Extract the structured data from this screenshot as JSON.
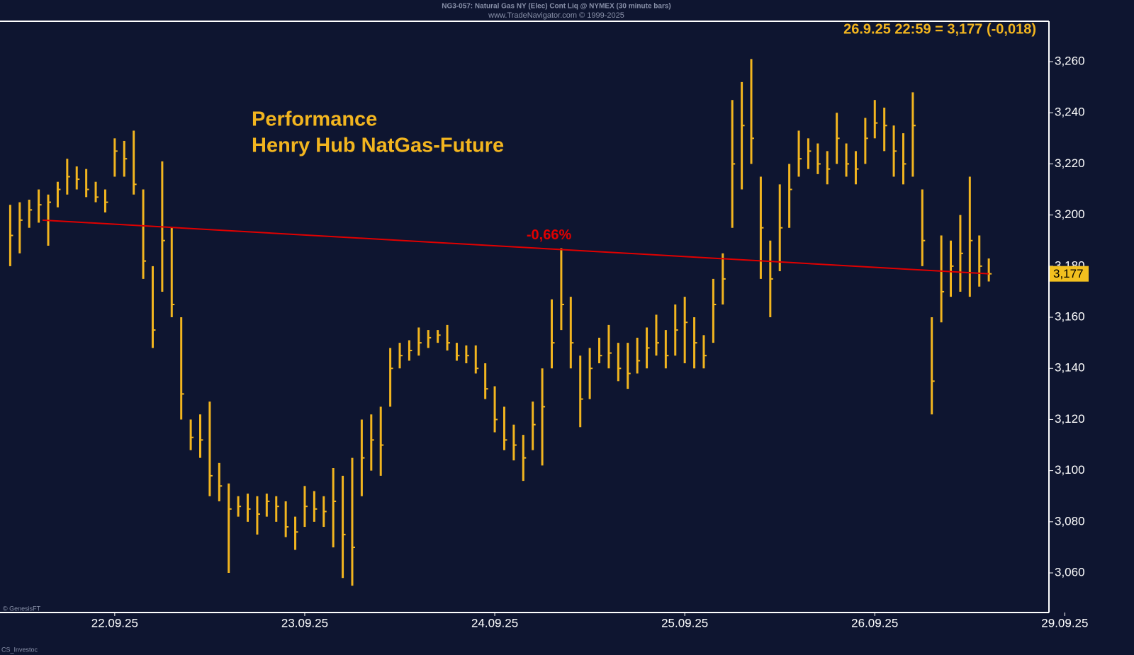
{
  "chart_data": {
    "type": "hlc",
    "source_line": "NG3-057: Natural Gas NY (Elec) Cont Liq @ NYMEX (30 minute bars)",
    "copyright_line": "www.TradeNavigator.com © 1999-2025",
    "title": "Performance",
    "subtitle": "Henry Hub NatGas-Future",
    "header_annotation": "26.9.25 22:59 = 3,177 (-0,018)",
    "watermark_1": "© GenesisFT",
    "watermark_2": "CS_Investoc",
    "color": "#f2b51f",
    "x": [
      -0.55,
      -0.5,
      -0.45,
      -0.4,
      -0.35,
      -0.3,
      -0.25,
      -0.2,
      -0.15,
      -0.1,
      -0.05,
      0,
      0.05,
      0.1,
      0.15,
      0.2,
      0.25,
      0.3,
      0.35,
      0.4,
      0.45,
      0.5,
      0.55,
      0.6,
      0.65,
      0.7,
      0.75,
      0.8,
      0.85,
      0.9,
      0.95,
      1,
      1.05,
      1.1,
      1.15,
      1.2,
      1.25,
      1.3,
      1.35,
      1.4,
      1.45,
      1.5,
      1.55,
      1.6,
      1.65,
      1.7,
      1.75,
      1.8,
      1.85,
      1.9,
      1.95,
      2,
      2.05,
      2.1,
      2.15,
      2.2,
      2.25,
      2.3,
      2.35,
      2.4,
      2.45,
      2.5,
      2.55,
      2.6,
      2.65,
      2.7,
      2.75,
      2.8,
      2.85,
      2.9,
      2.95,
      3,
      3.05,
      3.1,
      3.15,
      3.2,
      3.25,
      3.3,
      3.35,
      3.4,
      3.45,
      3.5,
      3.55,
      3.6,
      3.65,
      3.7,
      3.75,
      3.8,
      3.85,
      3.9,
      3.95,
      4,
      4.05,
      4.1,
      4.15,
      4.2,
      4.25,
      4.3,
      4.35,
      4.4,
      4.45,
      4.5,
      4.55,
      4.6
    ],
    "high": [
      3.204,
      3.205,
      3.206,
      3.21,
      3.208,
      3.213,
      3.222,
      3.219,
      3.218,
      3.213,
      3.21,
      3.23,
      3.229,
      3.233,
      3.21,
      3.18,
      3.221,
      3.195,
      3.16,
      3.12,
      3.122,
      3.127,
      3.103,
      3.095,
      3.09,
      3.091,
      3.09,
      3.091,
      3.09,
      3.088,
      3.082,
      3.094,
      3.092,
      3.09,
      3.101,
      3.098,
      3.105,
      3.12,
      3.122,
      3.125,
      3.148,
      3.15,
      3.151,
      3.156,
      3.155,
      3.155,
      3.157,
      3.15,
      3.149,
      3.149,
      3.142,
      3.133,
      3.125,
      3.118,
      3.114,
      3.127,
      3.14,
      3.167,
      3.187,
      3.168,
      3.145,
      3.148,
      3.152,
      3.157,
      3.15,
      3.15,
      3.152,
      3.156,
      3.161,
      3.155,
      3.165,
      3.168,
      3.16,
      3.153,
      3.175,
      3.185,
      3.245,
      3.252,
      3.261,
      3.215,
      3.19,
      3.212,
      3.22,
      3.233,
      3.23,
      3.228,
      3.225,
      3.24,
      3.228,
      3.225,
      3.238,
      3.245,
      3.242,
      3.235,
      3.232,
      3.248,
      3.21,
      3.16,
      3.192,
      3.19,
      3.2,
      3.215,
      3.192,
      3.183
    ],
    "low": [
      3.18,
      3.185,
      3.195,
      3.197,
      3.188,
      3.203,
      3.208,
      3.21,
      3.207,
      3.205,
      3.201,
      3.215,
      3.215,
      3.208,
      3.175,
      3.148,
      3.17,
      3.16,
      3.12,
      3.108,
      3.105,
      3.09,
      3.088,
      3.06,
      3.082,
      3.08,
      3.075,
      3.082,
      3.08,
      3.074,
      3.069,
      3.078,
      3.08,
      3.078,
      3.07,
      3.058,
      3.055,
      3.09,
      3.1,
      3.098,
      3.125,
      3.14,
      3.143,
      3.145,
      3.148,
      3.15,
      3.147,
      3.143,
      3.142,
      3.138,
      3.128,
      3.115,
      3.108,
      3.104,
      3.096,
      3.108,
      3.102,
      3.14,
      3.155,
      3.14,
      3.117,
      3.128,
      3.142,
      3.14,
      3.135,
      3.132,
      3.138,
      3.14,
      3.145,
      3.14,
      3.145,
      3.142,
      3.14,
      3.14,
      3.15,
      3.165,
      3.195,
      3.21,
      3.22,
      3.175,
      3.16,
      3.178,
      3.195,
      3.215,
      3.218,
      3.216,
      3.212,
      3.22,
      3.215,
      3.212,
      3.22,
      3.23,
      3.225,
      3.215,
      3.212,
      3.215,
      3.18,
      3.122,
      3.158,
      3.168,
      3.17,
      3.168,
      3.172,
      3.174
    ],
    "close": [
      3.192,
      3.198,
      3.202,
      3.204,
      3.205,
      3.21,
      3.215,
      3.214,
      3.21,
      3.207,
      3.205,
      3.225,
      3.222,
      3.212,
      3.182,
      3.155,
      3.19,
      3.165,
      3.13,
      3.113,
      3.112,
      3.098,
      3.094,
      3.085,
      3.086,
      3.085,
      3.083,
      3.088,
      3.086,
      3.078,
      3.076,
      3.086,
      3.085,
      3.084,
      3.088,
      3.075,
      3.07,
      3.105,
      3.112,
      3.11,
      3.14,
      3.145,
      3.147,
      3.15,
      3.152,
      3.153,
      3.15,
      3.145,
      3.145,
      3.14,
      3.132,
      3.12,
      3.112,
      3.11,
      3.105,
      3.118,
      3.125,
      3.15,
      3.165,
      3.15,
      3.128,
      3.14,
      3.145,
      3.146,
      3.14,
      3.138,
      3.143,
      3.148,
      3.15,
      3.145,
      3.155,
      3.158,
      3.15,
      3.145,
      3.165,
      3.175,
      3.22,
      3.235,
      3.23,
      3.195,
      3.175,
      3.195,
      3.21,
      3.222,
      3.225,
      3.22,
      3.218,
      3.23,
      3.22,
      3.218,
      3.23,
      3.236,
      3.235,
      3.225,
      3.22,
      3.235,
      3.19,
      3.135,
      3.17,
      3.18,
      3.185,
      3.19,
      3.18,
      3.177
    ],
    "trendline": {
      "x": [
        -0.38,
        4.6
      ],
      "values": [
        3.198,
        3.177
      ],
      "label": "-0,66%",
      "color": "#e00000"
    },
    "last_price": {
      "value": 3.177,
      "label": "3,177"
    },
    "xlim": [
      -0.6,
      5.2
    ],
    "xticks": [
      {
        "value": 0,
        "label": "22.09.25"
      },
      {
        "value": 1,
        "label": "23.09.25"
      },
      {
        "value": 2,
        "label": "24.09.25"
      },
      {
        "value": 3,
        "label": "25.09.25"
      },
      {
        "value": 4,
        "label": "26.09.25"
      },
      {
        "value": 5,
        "label": "29.09.25"
      }
    ],
    "ylim": [
      3.0445,
      3.2758
    ],
    "yticks": [
      {
        "value": 3.06,
        "label": "3,060"
      },
      {
        "value": 3.08,
        "label": "3,080"
      },
      {
        "value": 3.1,
        "label": "3,100"
      },
      {
        "value": 3.12,
        "label": "3,120"
      },
      {
        "value": 3.14,
        "label": "3,140"
      },
      {
        "value": 3.16,
        "label": "3,160"
      },
      {
        "value": 3.18,
        "label": "3,180"
      },
      {
        "value": 3.2,
        "label": "3,200"
      },
      {
        "value": 3.22,
        "label": "3,220"
      },
      {
        "value": 3.24,
        "label": "3,240"
      },
      {
        "value": 3.26,
        "label": "3,260"
      }
    ]
  }
}
